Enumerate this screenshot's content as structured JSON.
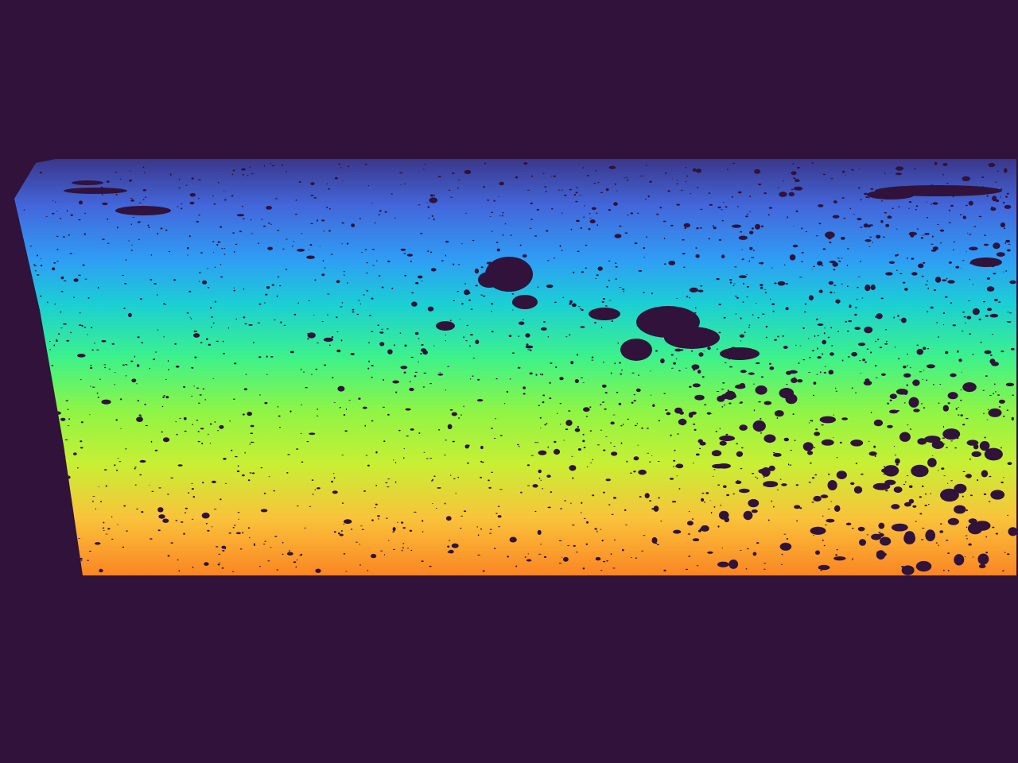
{
  "image": {
    "kind": "depth-map",
    "colormap": "turbo",
    "background_color": "#30123b",
    "gradient_stops": [
      {
        "offset": 0.0,
        "color": "#30123b"
      },
      {
        "offset": 0.06,
        "color": "#3b3a8f"
      },
      {
        "offset": 0.16,
        "color": "#4367db"
      },
      {
        "offset": 0.28,
        "color": "#2f9df5"
      },
      {
        "offset": 0.38,
        "color": "#1bcfd4"
      },
      {
        "offset": 0.5,
        "color": "#3df28a"
      },
      {
        "offset": 0.62,
        "color": "#8ef545"
      },
      {
        "offset": 0.74,
        "color": "#c8ef34"
      },
      {
        "offset": 0.86,
        "color": "#f9c33a"
      },
      {
        "offset": 1.0,
        "color": "#fb8022"
      }
    ]
  }
}
